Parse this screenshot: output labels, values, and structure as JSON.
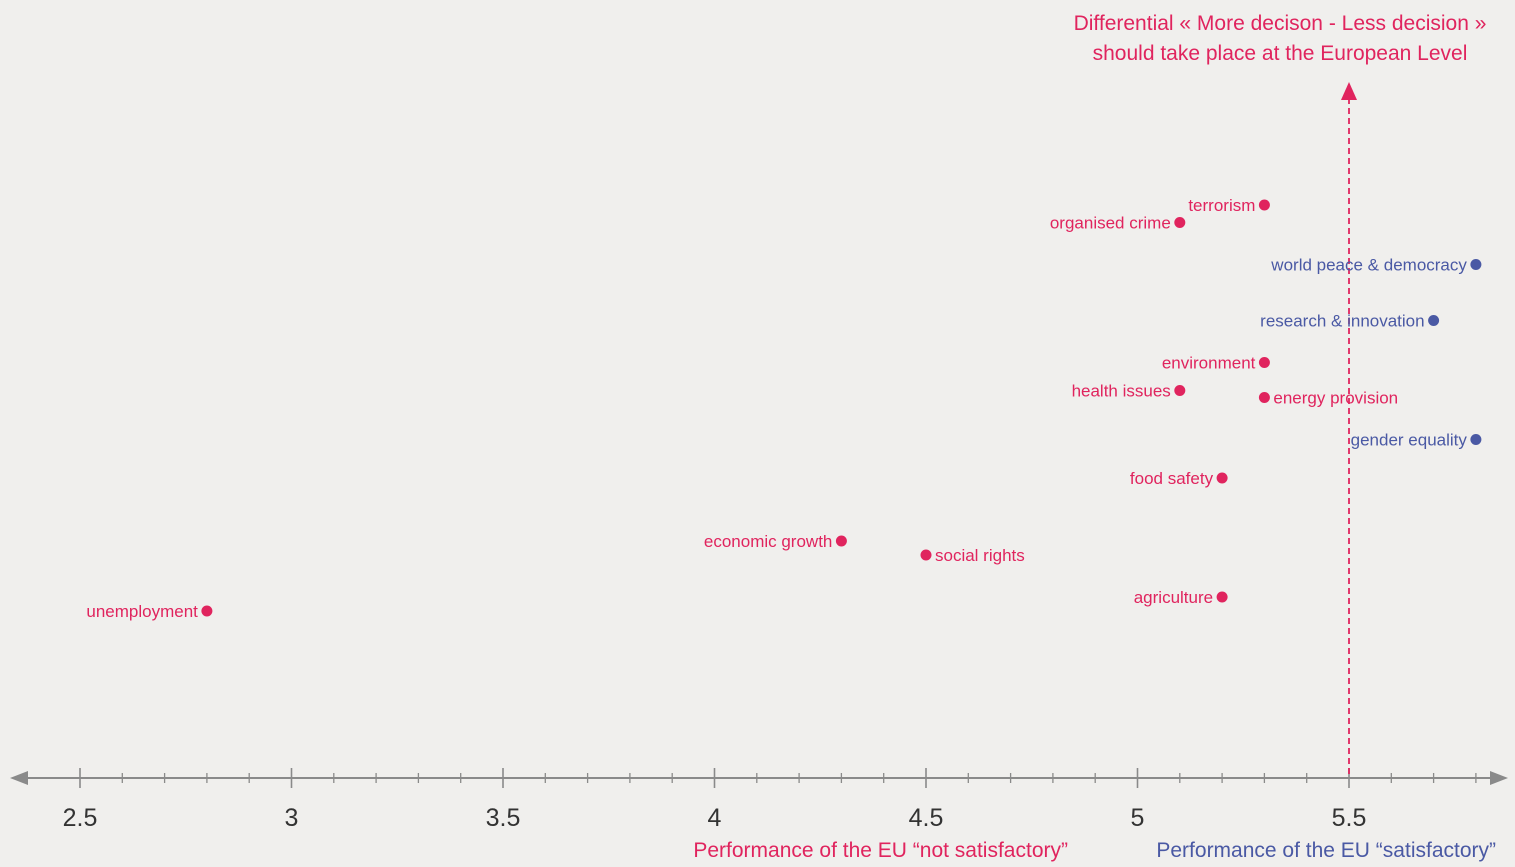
{
  "chart_data": {
    "type": "scatter",
    "title": "",
    "xlabel": "",
    "ylabel": "",
    "xlim": [
      2.5,
      5.85
    ],
    "x_ticks": [
      "2.5",
      "3",
      "3.5",
      "4",
      "4.5",
      "5",
      "5.5"
    ],
    "minor_tick_step": 0.1,
    "grid": false,
    "legend": "none",
    "colors": {
      "not_satisfactory": "#e0245e",
      "satisfactory": "#4a59a4",
      "axis": "#8a8a8a",
      "tick_label": "#333333",
      "background": "#f0efed"
    },
    "vertical_line": {
      "x": 5.5,
      "label_line1": "Differential « More decison - Less decision »",
      "label_line2": "should take place at the European Level"
    },
    "axis_annotations": {
      "not_satisfactory": "Performance of the EU “not satisfactory”",
      "satisfactory": "Performance of the EU “satisfactory”"
    },
    "points": [
      {
        "label": "terrorism",
        "x": 5.3,
        "y": 4.75,
        "group": "not_satisfactory",
        "label_side": "left"
      },
      {
        "label": "organised crime",
        "x": 5.1,
        "y": 4.7,
        "group": "not_satisfactory",
        "label_side": "left"
      },
      {
        "label": "world peace & democracy",
        "x": 5.8,
        "y": 4.58,
        "group": "satisfactory",
        "label_side": "left"
      },
      {
        "label": "research & innovation",
        "x": 5.7,
        "y": 4.42,
        "group": "satisfactory",
        "label_side": "left"
      },
      {
        "label": "environment",
        "x": 5.3,
        "y": 4.3,
        "group": "not_satisfactory",
        "label_side": "left"
      },
      {
        "label": "health issues",
        "x": 5.1,
        "y": 4.22,
        "group": "not_satisfactory",
        "label_side": "left"
      },
      {
        "label": "energy provision",
        "x": 5.3,
        "y": 4.2,
        "group": "not_satisfactory",
        "label_side": "right"
      },
      {
        "label": "gender equality",
        "x": 5.8,
        "y": 4.08,
        "group": "satisfactory",
        "label_side": "left"
      },
      {
        "label": "food safety",
        "x": 5.2,
        "y": 3.97,
        "group": "not_satisfactory",
        "label_side": "left"
      },
      {
        "label": "economic growth",
        "x": 4.3,
        "y": 3.79,
        "group": "not_satisfactory",
        "label_side": "left"
      },
      {
        "label": "social rights",
        "x": 4.5,
        "y": 3.75,
        "group": "not_satisfactory",
        "label_side": "right"
      },
      {
        "label": "agriculture",
        "x": 5.2,
        "y": 3.63,
        "group": "not_satisfactory",
        "label_side": "left"
      },
      {
        "label": "unemployment",
        "x": 2.8,
        "y": 3.59,
        "group": "not_satisfactory",
        "label_side": "left"
      }
    ]
  }
}
